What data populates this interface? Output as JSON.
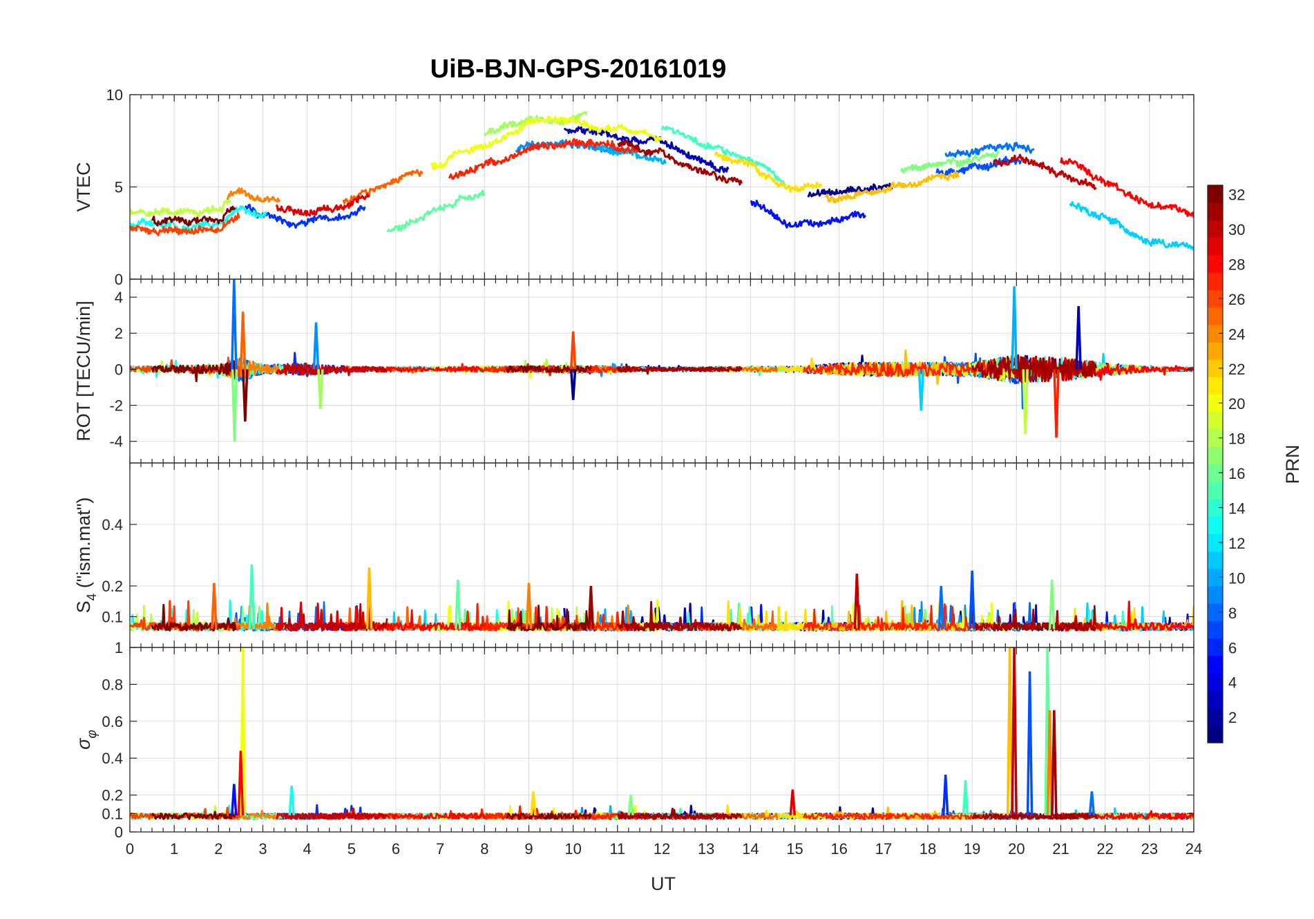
{
  "chart_data": {
    "type": "line",
    "title": "UiB-BJN-GPS-20161019",
    "xlabel": "UT",
    "xlim": [
      0,
      24
    ],
    "xticks": [
      "0",
      "1",
      "2",
      "3",
      "4",
      "5",
      "6",
      "7",
      "8",
      "9",
      "10",
      "11",
      "12",
      "13",
      "14",
      "15",
      "16",
      "17",
      "18",
      "19",
      "20",
      "21",
      "22",
      "23",
      "24"
    ],
    "panels": [
      {
        "id": "vtec",
        "ylabel": "VTEC",
        "ylim": [
          0,
          10
        ],
        "yticks": [
          "0",
          "5",
          "10"
        ],
        "ytick_values": [
          0,
          5,
          10
        ],
        "profile": [
          [
            0,
            3.3
          ],
          [
            1,
            3.2
          ],
          [
            2,
            3.3
          ],
          [
            2.5,
            4.2
          ],
          [
            3,
            3.7
          ],
          [
            4,
            3.4
          ],
          [
            5,
            3.8
          ],
          [
            6,
            4.8
          ],
          [
            7,
            5.8
          ],
          [
            8,
            6.8
          ],
          [
            9,
            7.8
          ],
          [
            10,
            7.9
          ],
          [
            11,
            7.6
          ],
          [
            12,
            7.2
          ],
          [
            13,
            6.2
          ],
          [
            14,
            5.3
          ],
          [
            15,
            4.0
          ],
          [
            16,
            4.3
          ],
          [
            17,
            4.8
          ],
          [
            18,
            5.2
          ],
          [
            19,
            5.5
          ],
          [
            20,
            5.8
          ],
          [
            21,
            5.0
          ],
          [
            22,
            3.8
          ],
          [
            23,
            2.6
          ],
          [
            24,
            2.2
          ]
        ],
        "noise": 0.9,
        "spikes": []
      },
      {
        "id": "rot",
        "ylabel": "ROT [TECU/min]",
        "ylim": [
          -5.2,
          5
        ],
        "yticks": [
          "-4",
          "-2",
          "0",
          "2",
          "4"
        ],
        "ytick_values": [
          -4,
          -2,
          0,
          2,
          4
        ],
        "profile": [
          [
            0,
            0
          ],
          [
            24,
            0
          ]
        ],
        "noise": 0.25,
        "activity": [
          [
            0,
            0.6
          ],
          [
            2,
            1.0
          ],
          [
            2.5,
            2.8
          ],
          [
            3,
            1.0
          ],
          [
            4,
            1.3
          ],
          [
            5,
            0.6
          ],
          [
            7,
            0.5
          ],
          [
            10,
            0.8
          ],
          [
            12,
            0.4
          ],
          [
            15,
            0.6
          ],
          [
            16,
            1.3
          ],
          [
            17,
            1.6
          ],
          [
            19,
            1.5
          ],
          [
            20,
            3.2
          ],
          [
            21,
            2.6
          ],
          [
            22,
            1.4
          ],
          [
            23,
            0.5
          ],
          [
            24,
            0.4
          ]
        ],
        "spikes": [
          [
            2.35,
            5.0
          ],
          [
            2.36,
            -4.0
          ],
          [
            2.55,
            3.2
          ],
          [
            2.6,
            -2.9
          ],
          [
            4.2,
            2.6
          ],
          [
            4.3,
            -2.2
          ],
          [
            10,
            2.1
          ],
          [
            10,
            -1.7
          ],
          [
            19.95,
            4.6
          ],
          [
            20.2,
            -3.6
          ],
          [
            20.9,
            -3.8
          ],
          [
            21.4,
            3.5
          ],
          [
            17.85,
            -2.3
          ]
        ]
      },
      {
        "id": "s4",
        "ylabel": "S4 (\"ism.mat\")",
        "ylabel_main": "S",
        "ylabel_sub": "4",
        "ylabel_rest": " (\"ism.mat\")",
        "ylim": [
          0,
          0.6
        ],
        "yticks": [
          "0.1",
          "0.2",
          "0.4"
        ],
        "ytick_values": [
          0.1,
          0.2,
          0.4
        ],
        "profile": [
          [
            0,
            0.06
          ],
          [
            24,
            0.06
          ]
        ],
        "noise": 0.025,
        "spikes": [
          [
            2.75,
            0.27
          ],
          [
            5.4,
            0.26
          ],
          [
            16.4,
            0.24
          ],
          [
            19,
            0.25
          ],
          [
            7.4,
            0.22
          ],
          [
            9,
            0.21
          ],
          [
            10.4,
            0.2
          ],
          [
            18.3,
            0.2
          ],
          [
            20.8,
            0.22
          ],
          [
            1.9,
            0.21
          ]
        ]
      },
      {
        "id": "sigma",
        "ylabel": "σ φ",
        "ylabel_main": "σ",
        "ylabel_sub": "φ",
        "ylim": [
          0,
          1
        ],
        "yticks": [
          "0",
          "0.1",
          "0.2",
          "0.4",
          "0.6",
          "0.8",
          "1"
        ],
        "ytick_values": [
          0,
          0.1,
          0.2,
          0.4,
          0.6,
          0.8,
          1
        ],
        "profile": [
          [
            0,
            0.09
          ],
          [
            24,
            0.09
          ]
        ],
        "noise": 0.015,
        "spikes": [
          [
            2.55,
            1.0
          ],
          [
            2.5,
            0.44
          ],
          [
            2.35,
            0.26
          ],
          [
            3.65,
            0.25
          ],
          [
            9.1,
            0.22
          ],
          [
            14.95,
            0.23
          ],
          [
            18.4,
            0.31
          ],
          [
            18.85,
            0.28
          ],
          [
            19.85,
            1.0
          ],
          [
            19.95,
            1.0
          ],
          [
            20.3,
            0.87
          ],
          [
            20.7,
            1.0
          ],
          [
            20.75,
            0.66
          ],
          [
            20.85,
            0.66
          ],
          [
            21.7,
            0.22
          ],
          [
            11.3,
            0.2
          ]
        ]
      }
    ],
    "colorbar": {
      "label": "PRN",
      "range": [
        1,
        32
      ],
      "ticks": [
        "2",
        "4",
        "6",
        "8",
        "10",
        "12",
        "14",
        "16",
        "18",
        "20",
        "22",
        "24",
        "26",
        "28",
        "30",
        "32"
      ],
      "colormap": "jet"
    },
    "series": [
      {
        "prn": 1,
        "color": "#00008f",
        "start": 15.3,
        "end": 17.2,
        "vtec_offset": 0.4
      },
      {
        "prn": 2,
        "color": "#0000b5",
        "start": 9.8,
        "end": 13.5,
        "vtec_offset": 0.2
      },
      {
        "prn": 4,
        "color": "#0010ff",
        "start": 14.0,
        "end": 16.6,
        "vtec_offset": -1.0
      },
      {
        "prn": 5,
        "color": "#0030ff",
        "start": 2.6,
        "end": 5.3,
        "vtec_offset": -0.2
      },
      {
        "prn": 6,
        "color": "#0050ff",
        "start": 18.2,
        "end": 20.1,
        "vtec_offset": 0.6
      },
      {
        "prn": 8,
        "color": "#0070ff",
        "start": 18.4,
        "end": 20.4,
        "vtec_offset": 1.5
      },
      {
        "prn": 9,
        "color": "#0090ff",
        "start": 8.7,
        "end": 11.1,
        "vtec_offset": -0.5
      },
      {
        "prn": 11,
        "color": "#00b0ff",
        "start": 10.5,
        "end": 12.1,
        "vtec_offset": -0.6
      },
      {
        "prn": 12,
        "color": "#00d0ff",
        "start": 21.2,
        "end": 24.0,
        "vtec_offset": -0.6
      },
      {
        "prn": 13,
        "color": "#10ffef",
        "start": 0.0,
        "end": 3.1,
        "vtec_offset": -0.4
      },
      {
        "prn": 15,
        "color": "#40ffbf",
        "start": 12.0,
        "end": 14.8,
        "vtec_offset": 1.0
      },
      {
        "prn": 16,
        "color": "#60ff9f",
        "start": 5.8,
        "end": 8.0,
        "vtec_offset": -2.0
      },
      {
        "prn": 17,
        "color": "#80ff7f",
        "start": 17.4,
        "end": 19.6,
        "vtec_offset": 1.0
      },
      {
        "prn": 18,
        "color": "#a0ff5f",
        "start": 8.0,
        "end": 10.3,
        "vtec_offset": 1.0
      },
      {
        "prn": 19,
        "color": "#c0ff3f",
        "start": 0.0,
        "end": 2.3,
        "vtec_offset": 0.4
      },
      {
        "prn": 20,
        "color": "#efff10",
        "start": 6.8,
        "end": 12.0,
        "vtec_offset": 0.5
      },
      {
        "prn": 21,
        "color": "#ffdf00",
        "start": 13.2,
        "end": 15.6,
        "vtec_offset": 0.8
      },
      {
        "prn": 22,
        "color": "#ffbf00",
        "start": 15.7,
        "end": 18.7,
        "vtec_offset": 0.2
      },
      {
        "prn": 24,
        "color": "#ff8000",
        "start": 2.2,
        "end": 3.4,
        "vtec_offset": 0.8
      },
      {
        "prn": 25,
        "color": "#ff6000",
        "start": 4.8,
        "end": 6.6,
        "vtec_offset": 0.4
      },
      {
        "prn": 26,
        "color": "#ff4000",
        "start": 0.0,
        "end": 2.5,
        "vtec_offset": -0.5
      },
      {
        "prn": 27,
        "color": "#ff2000",
        "start": 7.2,
        "end": 11.5,
        "vtec_offset": -0.6
      },
      {
        "prn": 28,
        "color": "#ff0000",
        "start": 21.0,
        "end": 24.0,
        "vtec_offset": 1.4
      },
      {
        "prn": 29,
        "color": "#df0000",
        "start": 3.3,
        "end": 5.4,
        "vtec_offset": 0.3
      },
      {
        "prn": 30,
        "color": "#bf0000",
        "start": 19.5,
        "end": 21.8,
        "vtec_offset": 0.7
      },
      {
        "prn": 31,
        "color": "#9f0000",
        "start": 11.0,
        "end": 13.8,
        "vtec_offset": -0.4
      },
      {
        "prn": 32,
        "color": "#800000",
        "start": 0.5,
        "end": 2.4,
        "vtec_offset": 0.0
      }
    ]
  }
}
